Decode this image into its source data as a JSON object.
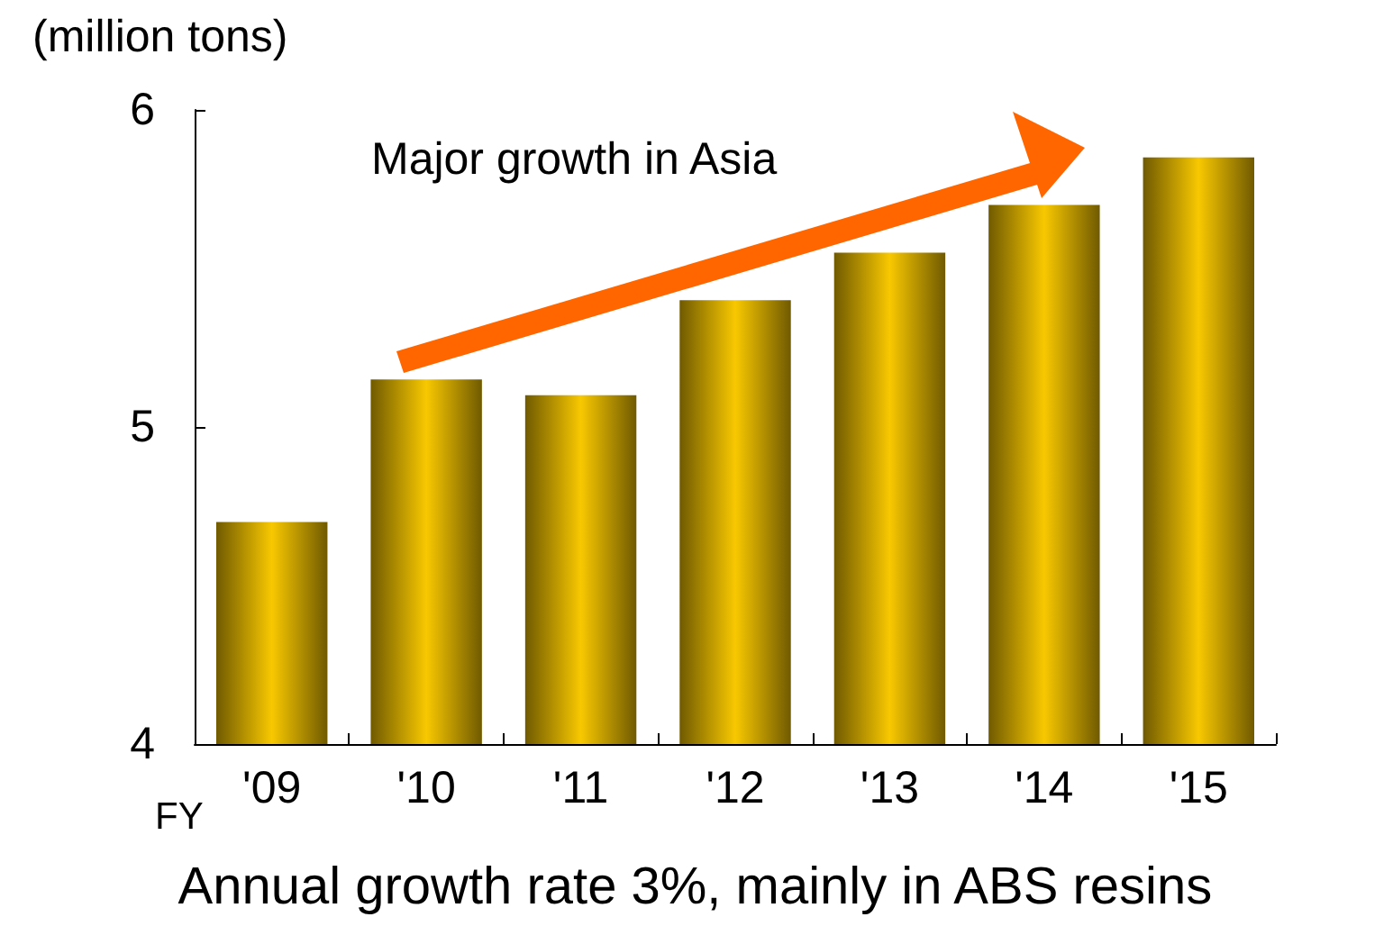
{
  "chart_data": {
    "type": "bar",
    "ylabel": "(million tons)",
    "xlabel": "FY",
    "categories": [
      "'09",
      "'10",
      "'11",
      "'12",
      "'13",
      "'14",
      "'15"
    ],
    "values": [
      4.7,
      5.15,
      5.1,
      5.4,
      5.55,
      5.7,
      5.85
    ],
    "color": "#f8c800",
    "ylim": [
      4,
      6
    ],
    "yticks": [
      4,
      5,
      6
    ],
    "grid": false,
    "annotations": [
      "Major growth in Asia",
      "Annual growth rate 3%, mainly in ABS resins"
    ]
  }
}
